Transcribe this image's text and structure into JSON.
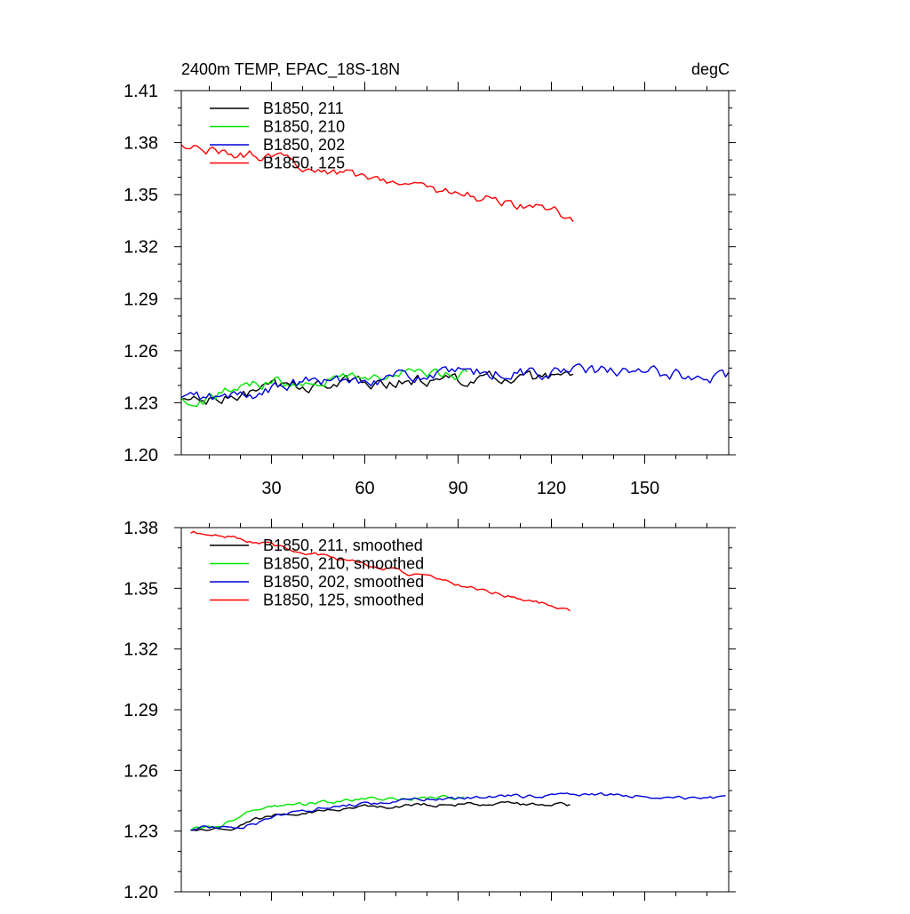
{
  "chart_data": [
    {
      "type": "line",
      "title": "2400m TEMP, EPAC_18S-18N",
      "units": "degC",
      "xlabel": "",
      "ylabel": "",
      "xlim": [
        1,
        177
      ],
      "ylim": [
        1.2,
        1.41
      ],
      "yticks": [
        "1.20",
        "1.23",
        "1.26",
        "1.29",
        "1.32",
        "1.35",
        "1.38",
        "1.41"
      ],
      "xticks": [
        "30",
        "60",
        "90",
        "120",
        "150"
      ],
      "xtick_values": [
        30,
        60,
        90,
        120,
        150
      ],
      "legend_position": "top-left",
      "series": [
        {
          "name": "B1850, 211",
          "color": "#000000",
          "length": 127,
          "start": 1.232,
          "end": 1.243,
          "peak": 1.244,
          "noise": 0.003
        },
        {
          "name": "B1850, 210",
          "color": "#00e600",
          "length": 93,
          "start": 1.233,
          "end": 1.246,
          "peak": 1.247,
          "noise": 0.003
        },
        {
          "name": "B1850, 202",
          "color": "#0000dd",
          "length": 177,
          "start": 1.233,
          "end": 1.245,
          "peak": 1.249,
          "noise": 0.003
        },
        {
          "name": "B1850, 125",
          "color": "#ff0000",
          "length": 127,
          "start": 1.378,
          "end": 1.337,
          "peak": 1.378,
          "noise": 0.0025
        }
      ]
    },
    {
      "type": "line",
      "title": "",
      "units": "",
      "xlabel": "",
      "ylabel": "",
      "xlim": [
        1,
        177
      ],
      "ylim": [
        1.2,
        1.38
      ],
      "yticks": [
        "1.20",
        "1.23",
        "1.26",
        "1.29",
        "1.32",
        "1.35",
        "1.38"
      ],
      "xticks": [],
      "xtick_values": [
        30,
        60,
        90,
        120,
        150
      ],
      "legend_position": "top-left",
      "series": [
        {
          "name": "B1850, 211, smoothed",
          "color": "#000000",
          "length": 123,
          "start": 1.232,
          "end": 1.243,
          "peak": 1.244,
          "noise": 0.0008
        },
        {
          "name": "B1850, 210, smoothed",
          "color": "#00e600",
          "length": 89,
          "start": 1.232,
          "end": 1.247,
          "peak": 1.247,
          "noise": 0.0008
        },
        {
          "name": "B1850, 202, smoothed",
          "color": "#0000dd",
          "length": 173,
          "start": 1.232,
          "end": 1.246,
          "peak": 1.249,
          "noise": 0.0008
        },
        {
          "name": "B1850, 125, smoothed",
          "color": "#ff0000",
          "length": 123,
          "start": 1.378,
          "end": 1.339,
          "peak": 1.378,
          "noise": 0.0008
        }
      ]
    }
  ]
}
